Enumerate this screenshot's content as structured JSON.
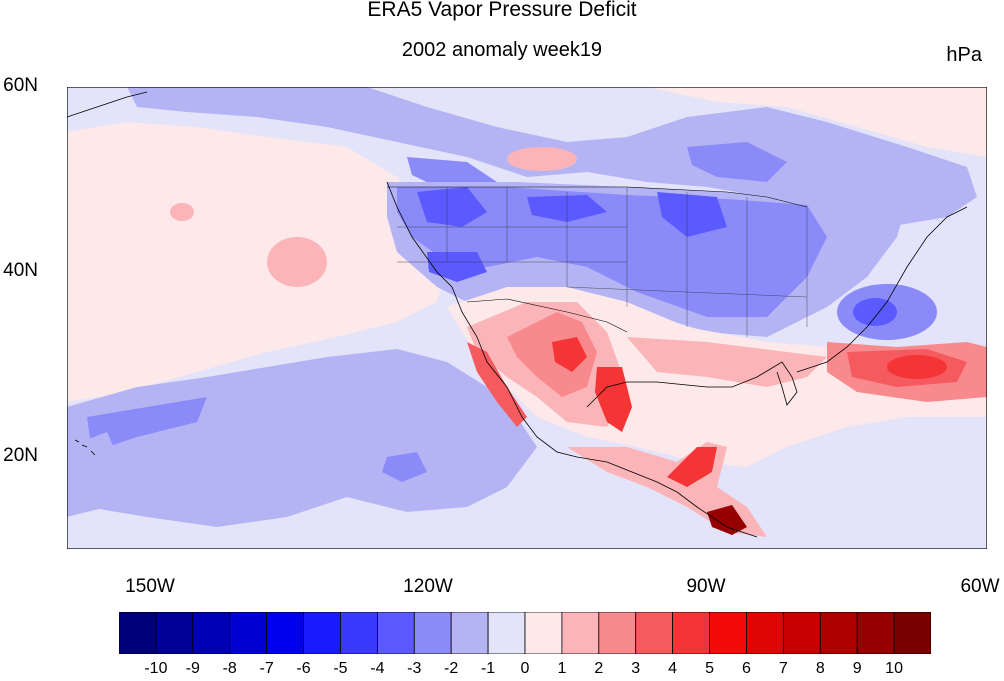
{
  "title": "ERA5 Vapor Pressure Deficit",
  "subtitle": "2002 anomaly week19",
  "units": "hPa",
  "lat_labels": [
    "60N",
    "40N",
    "20N"
  ],
  "lon_labels": [
    "150W",
    "120W",
    "90W",
    "60W"
  ],
  "colorbar": {
    "labels": [
      "-10",
      "-9",
      "-8",
      "-7",
      "-6",
      "-5",
      "-4",
      "-3",
      "-2",
      "-1",
      "0",
      "1",
      "2",
      "3",
      "4",
      "5",
      "6",
      "7",
      "8",
      "9",
      "10"
    ],
    "colors": [
      "#00007a",
      "#000096",
      "#0000b4",
      "#0000d2",
      "#0000ee",
      "#1a1aff",
      "#3a3aff",
      "#5a5aff",
      "#8a8af8",
      "#b4b4f5",
      "#e3e3fa",
      "#fde8ea",
      "#fbb5b8",
      "#f88a8e",
      "#f55a5e",
      "#f53535",
      "#f50a0a",
      "#de0505",
      "#c80000",
      "#ae0000",
      "#960000",
      "#7a0000"
    ]
  },
  "map_palette": {
    "ocean_neutral": "#e3e3fa",
    "neg_weak": "#b4b4f5",
    "neg_mid": "#8a8af8",
    "neg_strong": "#5a5aff",
    "pos_weak": "#fde8ea",
    "pos_light": "#fbb5b8",
    "pos_mid": "#f88a8e",
    "pos_strong": "#f53535",
    "pos_max": "#960000",
    "coast": "#000000"
  }
}
